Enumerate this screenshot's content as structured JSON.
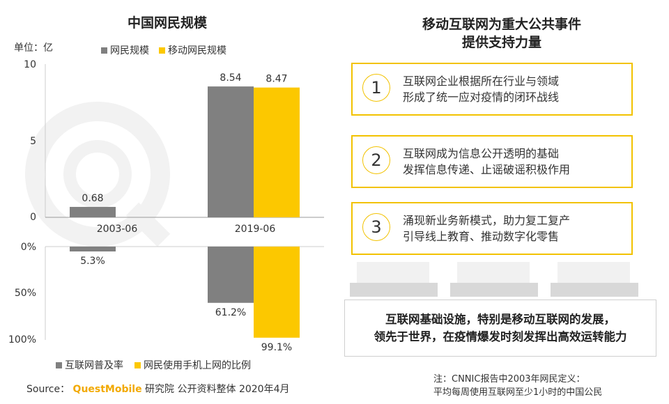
{
  "left": {
    "title": "中国网民规模",
    "unit_label": "单位：亿",
    "legend_top": [
      {
        "label": "网民规模",
        "color": "#808080"
      },
      {
        "label": "移动网民规模",
        "color": "#fcc800"
      }
    ],
    "legend_bottom": [
      {
        "label": "互联网普及率",
        "color": "#808080"
      },
      {
        "label": "网民使用手机上网的比例",
        "color": "#fcc800"
      }
    ]
  },
  "chart_data": [
    {
      "type": "bar",
      "title": "中国网民规模",
      "ylabel": "单位：亿",
      "ylim": [
        0,
        10
      ],
      "yticks": [
        "0",
        "5",
        "10"
      ],
      "categories": [
        "2003-06",
        "2019-06"
      ],
      "series": [
        {
          "name": "网民规模",
          "values": [
            0.68,
            8.54
          ],
          "labels": [
            "0.68",
            "8.54"
          ],
          "color": "#808080"
        },
        {
          "name": "移动网民规模",
          "values": [
            null,
            8.47
          ],
          "labels": [
            "",
            "8.47"
          ],
          "color": "#fcc800"
        }
      ]
    },
    {
      "type": "bar",
      "ylim": [
        0,
        100
      ],
      "inverted": true,
      "yticks": [
        "0%",
        "50%",
        "100%"
      ],
      "categories": [
        "2003-06",
        "2019-06"
      ],
      "series": [
        {
          "name": "互联网普及率",
          "values": [
            5.3,
            61.2
          ],
          "labels": [
            "5.3%",
            "61.2%"
          ],
          "color": "#808080"
        },
        {
          "name": "网民使用手机上网的比例",
          "values": [
            null,
            99.1
          ],
          "labels": [
            "",
            "99.1%"
          ],
          "color": "#fcc800"
        }
      ]
    }
  ],
  "right": {
    "title_line1": "移动互联网为重大公共事件",
    "title_line2": "提供支持力量",
    "cards": [
      {
        "num": "1",
        "line1": "互联网企业根据所在行业与领域",
        "line2": "形成了统一应对疫情的闭环战线"
      },
      {
        "num": "2",
        "line1": "互联网成为信息公开透明的基础",
        "line2": "发挥信息传递、止谣破谣积极作用"
      },
      {
        "num": "3",
        "line1": "涌现新业务新模式，助力复工复产",
        "line2": "引导线上教育、推动数字化零售"
      }
    ],
    "conclusion_line1": "互联网基础设施，特别是移动互联网的发展，",
    "conclusion_line2": "领先于世界，在疫情爆发时刻发挥出高效运转能力"
  },
  "footer": {
    "source_prefix": "Source：",
    "source_brand": "QuestMobile",
    "source_suffix": " 研究院 公开资料整体 2020年4月",
    "note_line1": "注：CNNIC报告中2003年网民定义：",
    "note_line2": "平均每周使用互联网至少1小时的中国公民"
  }
}
